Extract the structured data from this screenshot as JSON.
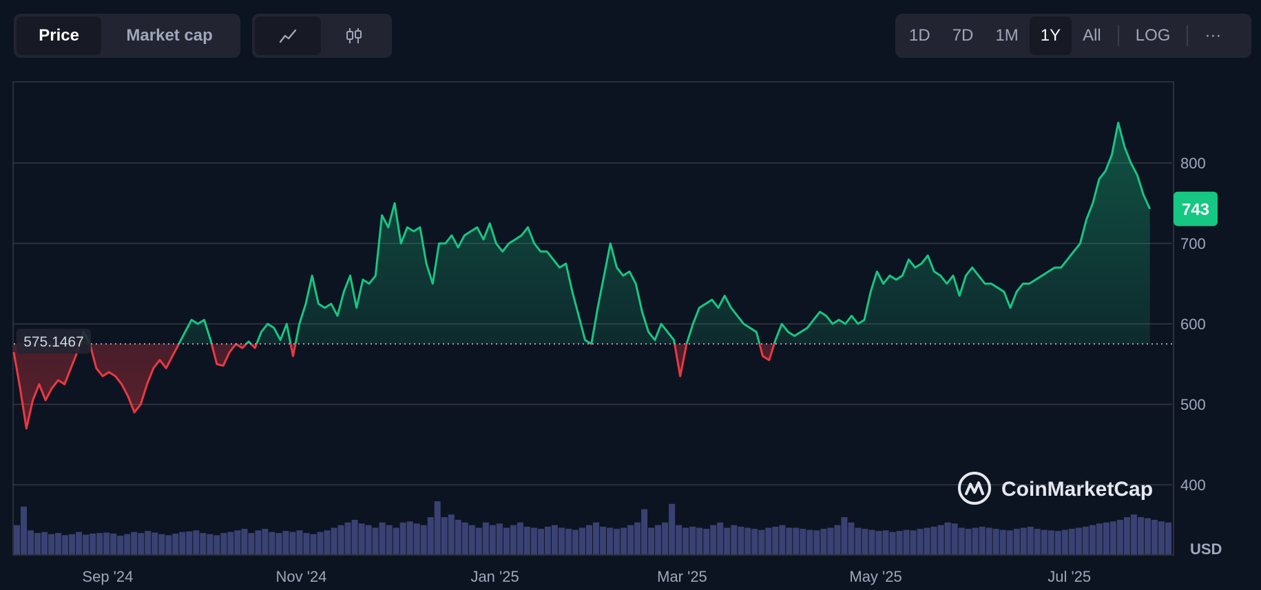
{
  "toolbar": {
    "price_label": "Price",
    "market_cap_label": "Market cap",
    "line_chart_icon": "line-chart-icon",
    "candlestick_icon": "candlestick-icon",
    "ranges": [
      "1D",
      "7D",
      "1M",
      "1Y",
      "All"
    ],
    "active_range": "1Y",
    "log_label": "LOG",
    "more_label": "···"
  },
  "colors": {
    "up": "#16c784",
    "down": "#ea3943",
    "background": "#0d1421",
    "grid": "#2b2f3b",
    "volume": "#3a4274"
  },
  "watermark": "CoinMarketCap",
  "chart_data": {
    "type": "line",
    "title": "",
    "ylabel": "",
    "unit_label": "USD",
    "ylim": [
      400,
      900
    ],
    "yticks": [
      400,
      500,
      600,
      700,
      800
    ],
    "baseline": 575.1467,
    "baseline_label": "575.1467",
    "current_value": 743,
    "current_label": "743",
    "x_tick_labels": [
      "Sep '24",
      "Nov '24",
      "Jan '25",
      "Mar '25",
      "May '25",
      "Jul '25"
    ],
    "x_tick_dates": [
      "2024-09-01",
      "2024-11-01",
      "2025-01-01",
      "2025-03-01",
      "2025-05-01",
      "2025-07-01"
    ],
    "x_start": "2024-08-10",
    "x_end": "2025-08-10",
    "series": [
      {
        "points": [
          [
            "2024-08-10",
            565
          ],
          [
            "2024-08-12",
            520
          ],
          [
            "2024-08-14",
            470
          ],
          [
            "2024-08-16",
            505
          ],
          [
            "2024-08-18",
            525
          ],
          [
            "2024-08-20",
            505
          ],
          [
            "2024-08-22",
            520
          ],
          [
            "2024-08-24",
            530
          ],
          [
            "2024-08-26",
            525
          ],
          [
            "2024-08-28",
            545
          ],
          [
            "2024-08-30",
            565
          ],
          [
            "2024-09-01",
            590
          ],
          [
            "2024-09-03",
            575
          ],
          [
            "2024-09-05",
            545
          ],
          [
            "2024-09-07",
            535
          ],
          [
            "2024-09-09",
            540
          ],
          [
            "2024-09-11",
            535
          ],
          [
            "2024-09-13",
            525
          ],
          [
            "2024-09-15",
            510
          ],
          [
            "2024-09-17",
            490
          ],
          [
            "2024-09-19",
            500
          ],
          [
            "2024-09-21",
            525
          ],
          [
            "2024-09-23",
            545
          ],
          [
            "2024-09-25",
            555
          ],
          [
            "2024-09-27",
            545
          ],
          [
            "2024-09-29",
            560
          ],
          [
            "2024-10-01",
            575
          ],
          [
            "2024-10-03",
            590
          ],
          [
            "2024-10-05",
            605
          ],
          [
            "2024-10-07",
            600
          ],
          [
            "2024-10-09",
            605
          ],
          [
            "2024-10-11",
            580
          ],
          [
            "2024-10-13",
            550
          ],
          [
            "2024-10-15",
            548
          ],
          [
            "2024-10-17",
            565
          ],
          [
            "2024-10-19",
            575
          ],
          [
            "2024-10-21",
            570
          ],
          [
            "2024-10-23",
            578
          ],
          [
            "2024-10-25",
            570
          ],
          [
            "2024-10-27",
            590
          ],
          [
            "2024-10-29",
            600
          ],
          [
            "2024-10-31",
            595
          ],
          [
            "2024-11-02",
            580
          ],
          [
            "2024-11-04",
            600
          ],
          [
            "2024-11-06",
            560
          ],
          [
            "2024-11-08",
            600
          ],
          [
            "2024-11-10",
            625
          ],
          [
            "2024-11-12",
            660
          ],
          [
            "2024-11-14",
            625
          ],
          [
            "2024-11-16",
            620
          ],
          [
            "2024-11-18",
            625
          ],
          [
            "2024-11-20",
            610
          ],
          [
            "2024-11-22",
            640
          ],
          [
            "2024-11-24",
            660
          ],
          [
            "2024-11-26",
            620
          ],
          [
            "2024-11-28",
            655
          ],
          [
            "2024-11-30",
            650
          ],
          [
            "2024-12-02",
            660
          ],
          [
            "2024-12-04",
            735
          ],
          [
            "2024-12-06",
            720
          ],
          [
            "2024-12-08",
            750
          ],
          [
            "2024-12-10",
            700
          ],
          [
            "2024-12-12",
            720
          ],
          [
            "2024-12-14",
            715
          ],
          [
            "2024-12-16",
            720
          ],
          [
            "2024-12-18",
            675
          ],
          [
            "2024-12-20",
            650
          ],
          [
            "2024-12-22",
            700
          ],
          [
            "2024-12-24",
            700
          ],
          [
            "2024-12-26",
            710
          ],
          [
            "2024-12-28",
            695
          ],
          [
            "2024-12-30",
            710
          ],
          [
            "2025-01-01",
            715
          ],
          [
            "2025-01-03",
            720
          ],
          [
            "2025-01-05",
            705
          ],
          [
            "2025-01-07",
            725
          ],
          [
            "2025-01-09",
            700
          ],
          [
            "2025-01-11",
            690
          ],
          [
            "2025-01-13",
            700
          ],
          [
            "2025-01-15",
            705
          ],
          [
            "2025-01-17",
            710
          ],
          [
            "2025-01-19",
            720
          ],
          [
            "2025-01-21",
            700
          ],
          [
            "2025-01-23",
            690
          ],
          [
            "2025-01-25",
            690
          ],
          [
            "2025-01-27",
            680
          ],
          [
            "2025-01-29",
            670
          ],
          [
            "2025-01-31",
            675
          ],
          [
            "2025-02-02",
            640
          ],
          [
            "2025-02-04",
            610
          ],
          [
            "2025-02-06",
            580
          ],
          [
            "2025-02-08",
            575
          ],
          [
            "2025-02-10",
            620
          ],
          [
            "2025-02-12",
            660
          ],
          [
            "2025-02-14",
            700
          ],
          [
            "2025-02-16",
            670
          ],
          [
            "2025-02-18",
            660
          ],
          [
            "2025-02-20",
            665
          ],
          [
            "2025-02-22",
            650
          ],
          [
            "2025-02-24",
            615
          ],
          [
            "2025-02-26",
            590
          ],
          [
            "2025-02-28",
            580
          ],
          [
            "2025-03-02",
            600
          ],
          [
            "2025-03-04",
            590
          ],
          [
            "2025-03-06",
            580
          ],
          [
            "2025-03-08",
            535
          ],
          [
            "2025-03-10",
            575
          ],
          [
            "2025-03-12",
            600
          ],
          [
            "2025-03-14",
            620
          ],
          [
            "2025-03-16",
            625
          ],
          [
            "2025-03-18",
            630
          ],
          [
            "2025-03-20",
            620
          ],
          [
            "2025-03-22",
            635
          ],
          [
            "2025-03-24",
            620
          ],
          [
            "2025-03-26",
            610
          ],
          [
            "2025-03-28",
            600
          ],
          [
            "2025-03-30",
            595
          ],
          [
            "2025-04-01",
            590
          ],
          [
            "2025-04-03",
            560
          ],
          [
            "2025-04-05",
            555
          ],
          [
            "2025-04-07",
            580
          ],
          [
            "2025-04-09",
            600
          ],
          [
            "2025-04-11",
            590
          ],
          [
            "2025-04-13",
            585
          ],
          [
            "2025-04-15",
            590
          ],
          [
            "2025-04-17",
            595
          ],
          [
            "2025-04-19",
            605
          ],
          [
            "2025-04-21",
            615
          ],
          [
            "2025-04-23",
            610
          ],
          [
            "2025-04-25",
            600
          ],
          [
            "2025-04-27",
            605
          ],
          [
            "2025-04-29",
            600
          ],
          [
            "2025-05-01",
            610
          ],
          [
            "2025-05-03",
            600
          ],
          [
            "2025-05-05",
            605
          ],
          [
            "2025-05-07",
            640
          ],
          [
            "2025-05-09",
            665
          ],
          [
            "2025-05-11",
            650
          ],
          [
            "2025-05-13",
            660
          ],
          [
            "2025-05-15",
            655
          ],
          [
            "2025-05-17",
            660
          ],
          [
            "2025-05-19",
            680
          ],
          [
            "2025-05-21",
            670
          ],
          [
            "2025-05-23",
            675
          ],
          [
            "2025-05-25",
            685
          ],
          [
            "2025-05-27",
            665
          ],
          [
            "2025-05-29",
            660
          ],
          [
            "2025-05-31",
            650
          ],
          [
            "2025-06-02",
            660
          ],
          [
            "2025-06-04",
            635
          ],
          [
            "2025-06-06",
            660
          ],
          [
            "2025-06-08",
            670
          ],
          [
            "2025-06-10",
            660
          ],
          [
            "2025-06-12",
            650
          ],
          [
            "2025-06-14",
            650
          ],
          [
            "2025-06-16",
            645
          ],
          [
            "2025-06-18",
            640
          ],
          [
            "2025-06-20",
            620
          ],
          [
            "2025-06-22",
            640
          ],
          [
            "2025-06-24",
            650
          ],
          [
            "2025-06-26",
            650
          ],
          [
            "2025-06-28",
            655
          ],
          [
            "2025-06-30",
            660
          ],
          [
            "2025-07-02",
            665
          ],
          [
            "2025-07-04",
            670
          ],
          [
            "2025-07-06",
            670
          ],
          [
            "2025-07-08",
            680
          ],
          [
            "2025-07-10",
            690
          ],
          [
            "2025-07-12",
            700
          ],
          [
            "2025-07-14",
            730
          ],
          [
            "2025-07-16",
            750
          ],
          [
            "2025-07-18",
            780
          ],
          [
            "2025-07-20",
            790
          ],
          [
            "2025-07-22",
            810
          ],
          [
            "2025-07-24",
            850
          ],
          [
            "2025-07-26",
            820
          ],
          [
            "2025-07-28",
            800
          ],
          [
            "2025-07-30",
            785
          ],
          [
            "2025-08-01",
            760
          ],
          [
            "2025-08-03",
            743
          ]
        ]
      }
    ],
    "volume_relative": [
      0.55,
      0.9,
      0.45,
      0.4,
      0.42,
      0.38,
      0.4,
      0.36,
      0.38,
      0.42,
      0.37,
      0.39,
      0.4,
      0.41,
      0.39,
      0.35,
      0.38,
      0.42,
      0.4,
      0.44,
      0.41,
      0.38,
      0.36,
      0.39,
      0.42,
      0.43,
      0.45,
      0.4,
      0.38,
      0.36,
      0.4,
      0.42,
      0.45,
      0.48,
      0.4,
      0.45,
      0.48,
      0.42,
      0.4,
      0.44,
      0.42,
      0.45,
      0.4,
      0.38,
      0.42,
      0.45,
      0.5,
      0.55,
      0.6,
      0.65,
      0.58,
      0.55,
      0.5,
      0.6,
      0.55,
      0.5,
      0.6,
      0.62,
      0.58,
      0.55,
      0.7,
      1.0,
      0.7,
      0.75,
      0.65,
      0.6,
      0.55,
      0.5,
      0.6,
      0.55,
      0.58,
      0.5,
      0.55,
      0.6,
      0.52,
      0.5,
      0.48,
      0.52,
      0.55,
      0.5,
      0.48,
      0.46,
      0.5,
      0.55,
      0.6,
      0.52,
      0.5,
      0.48,
      0.5,
      0.55,
      0.6,
      0.85,
      0.5,
      0.55,
      0.6,
      0.95,
      0.55,
      0.5,
      0.52,
      0.5,
      0.48,
      0.55,
      0.6,
      0.5,
      0.55,
      0.52,
      0.5,
      0.48,
      0.46,
      0.5,
      0.52,
      0.55,
      0.5,
      0.5,
      0.48,
      0.46,
      0.45,
      0.48,
      0.5,
      0.55,
      0.7,
      0.6,
      0.5,
      0.48,
      0.46,
      0.44,
      0.45,
      0.42,
      0.44,
      0.46,
      0.45,
      0.48,
      0.5,
      0.52,
      0.55,
      0.6,
      0.58,
      0.5,
      0.48,
      0.5,
      0.52,
      0.5,
      0.48,
      0.46,
      0.45,
      0.48,
      0.5,
      0.52,
      0.48,
      0.46,
      0.45,
      0.44,
      0.46,
      0.48,
      0.5,
      0.52,
      0.55,
      0.58,
      0.6,
      0.62,
      0.65,
      0.7,
      0.75,
      0.7,
      0.68,
      0.65,
      0.62,
      0.6
    ]
  }
}
